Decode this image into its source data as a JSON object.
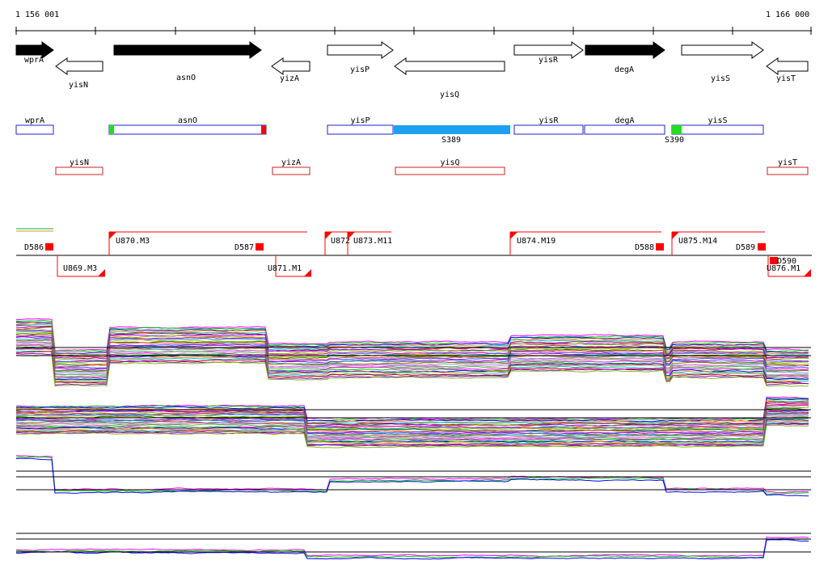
{
  "ruler": {
    "start": "1 156 001",
    "end": "1 166 000"
  },
  "genes": [
    {
      "name": "wprA",
      "strand": "+",
      "style": "filled"
    },
    {
      "name": "yisN",
      "strand": "-",
      "style": "open"
    },
    {
      "name": "asnO",
      "strand": "+",
      "style": "filled"
    },
    {
      "name": "yizA",
      "strand": "-",
      "style": "open"
    },
    {
      "name": "yisP",
      "strand": "+",
      "style": "open"
    },
    {
      "name": "yisQ",
      "strand": "-",
      "style": "open"
    },
    {
      "name": "yisR",
      "strand": "+",
      "style": "open"
    },
    {
      "name": "degA",
      "strand": "+",
      "style": "filled"
    },
    {
      "name": "yisS",
      "strand": "+",
      "style": "open"
    },
    {
      "name": "yisT",
      "strand": "-",
      "style": "open"
    }
  ],
  "plus_boxes": [
    "wprA",
    "asnO",
    "yisP",
    "yisR",
    "degA",
    "yisS"
  ],
  "minus_boxes": [
    "yisN",
    "yizA",
    "yisQ",
    "yisT"
  ],
  "segments": [
    {
      "label": "S389",
      "color": "#1ba1ee"
    },
    {
      "label": "S390",
      "color": "#22dd22"
    }
  ],
  "upstream_labels": [
    "U869.M3",
    "U870.M3",
    "U871.M1",
    "U872",
    "U873.M11",
    "U874.M19",
    "U875.M14",
    "U876.M1"
  ],
  "downstream_labels": [
    "D586",
    "D587",
    "D588",
    "D589",
    "D590"
  ],
  "colors": {
    "plus_box": "#2020cc",
    "minus_box": "#cc2020",
    "marker": "#ff0000",
    "bright_green": "#22dd22",
    "segment_blue": "#1ba1ee"
  }
}
